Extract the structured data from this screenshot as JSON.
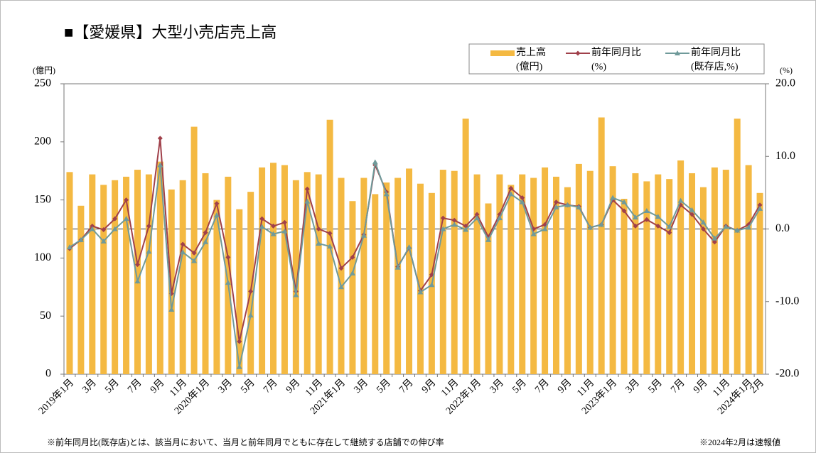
{
  "chart_data": {
    "type": "bar_line",
    "title": "■【愛媛県】大型小売店売上高",
    "y_label": "(億円)",
    "y2_label": "(%)",
    "categories": [
      "2019年1月",
      null,
      "3月",
      null,
      "5月",
      null,
      "7月",
      null,
      "9月",
      null,
      "11月",
      null,
      "2020年1月",
      null,
      "3月",
      null,
      "5月",
      null,
      "7月",
      null,
      "9月",
      null,
      "11月",
      null,
      "2021年1月",
      null,
      "3月",
      null,
      "5月",
      null,
      "7月",
      null,
      "9月",
      null,
      "11月",
      null,
      "2022年1月",
      null,
      "3月",
      null,
      "5月",
      null,
      "7月",
      null,
      "9月",
      null,
      "11月",
      null,
      "2023年1月",
      null,
      "3月",
      null,
      "5月",
      null,
      "7月",
      null,
      "9月",
      null,
      "11月",
      null,
      "2024年1月",
      "2月"
    ],
    "series": [
      {
        "name": "売上高",
        "unit": "(億円)",
        "type": "bar",
        "color": "#f4b942",
        "values": [
          174,
          145,
          172,
          163,
          167,
          170,
          176,
          172,
          183,
          159,
          167,
          213,
          173,
          150,
          170,
          142,
          157,
          178,
          182,
          180,
          167,
          174,
          172,
          219,
          169,
          149,
          169,
          155,
          165,
          169,
          177,
          164,
          156,
          176,
          175,
          220,
          172,
          147,
          172,
          163,
          172,
          169,
          178,
          170,
          161,
          181,
          175,
          221,
          179,
          151,
          173,
          166,
          172,
          168,
          184,
          173,
          161,
          178,
          176,
          220,
          180,
          156
        ]
      },
      {
        "name": "前年同月比",
        "unit": "(%)",
        "type": "line",
        "axis": "y2",
        "marker": "diamond",
        "color": "#a0404a",
        "values": [
          -2.7,
          -1.5,
          0.4,
          -0.1,
          1.4,
          4.0,
          -4.9,
          0.4,
          12.5,
          -8.9,
          -2.1,
          -3.3,
          -0.5,
          3.5,
          -3.9,
          -15.5,
          -8.6,
          1.4,
          0.4,
          0.9,
          -8.6,
          5.5,
          0.0,
          -0.6,
          -5.4,
          -3.9,
          -0.8,
          8.8,
          5.1,
          -5.2,
          -2.6,
          -8.5,
          -6.3,
          1.5,
          1.2,
          0.4,
          2.0,
          -1.1,
          2.0,
          5.6,
          4.3,
          0.0,
          0.6,
          3.7,
          3.3,
          3.1,
          0.2,
          0.6,
          4.0,
          2.5,
          0.4,
          1.3,
          0.4,
          -0.5,
          3.3,
          2.0,
          0.0,
          -1.8,
          0.4,
          -0.2,
          0.6,
          3.3
        ]
      },
      {
        "name": "前年同月比",
        "unit": "(既存店,%)",
        "type": "line",
        "axis": "y2",
        "marker": "triangle",
        "color": "#6f9a9a",
        "values": [
          -2.5,
          -1.5,
          0.0,
          -1.7,
          0.0,
          1.4,
          -7.2,
          -3.1,
          8.8,
          -11.1,
          -3.2,
          -4.4,
          -1.8,
          1.9,
          -7.4,
          -19.0,
          -11.9,
          0.3,
          -0.7,
          -0.3,
          -9.1,
          3.8,
          -2.0,
          -2.4,
          -8.0,
          -6.1,
          -0.9,
          9.2,
          4.8,
          -5.3,
          -2.5,
          -8.7,
          -7.7,
          0.0,
          0.6,
          -0.1,
          1.5,
          -1.5,
          1.5,
          4.8,
          3.7,
          -0.7,
          0.0,
          3.0,
          3.3,
          3.0,
          0.2,
          0.6,
          4.3,
          3.7,
          1.6,
          2.5,
          1.7,
          0.3,
          3.9,
          2.6,
          0.9,
          -1.3,
          0.3,
          -0.2,
          0.2,
          2.8
        ]
      }
    ],
    "ylim": [
      0,
      250
    ],
    "yticks": [
      0,
      50,
      100,
      150,
      200,
      250
    ],
    "y2lim": [
      -20,
      20
    ],
    "y2ticks": [
      {
        "value": -20,
        "label": "-20.0"
      },
      {
        "value": -10,
        "label": "-10.0"
      },
      {
        "value": 0,
        "label": "0.0"
      },
      {
        "value": 10,
        "label": "10.0"
      },
      {
        "value": 20,
        "label": "20.0"
      }
    ],
    "grid": false,
    "notes": [
      "※前年同月比(既存店)とは、該当月において、当月と前年同月でともに存在して継続する店舗での伸び率",
      "※2024年2月は速報値"
    ]
  }
}
